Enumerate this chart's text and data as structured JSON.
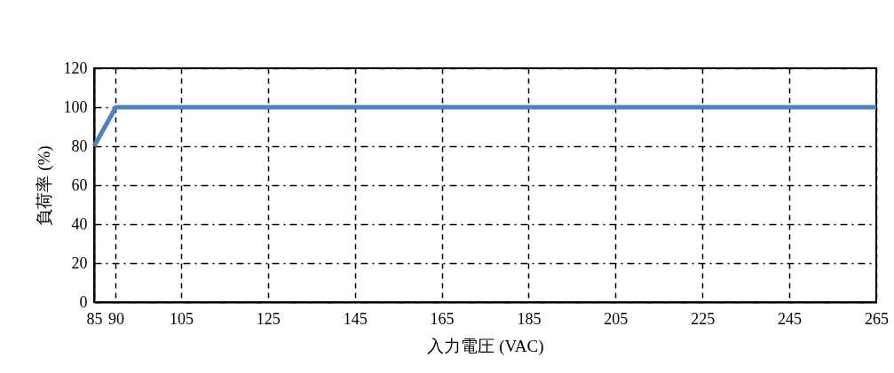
{
  "chart_data": {
    "type": "line",
    "xlabel": "入力電圧 (VAC)",
    "ylabel": "負荷率 (%)",
    "x": [
      85,
      90,
      265
    ],
    "series": [
      {
        "color": "#4f81bd",
        "values": [
          80,
          100,
          100
        ]
      }
    ],
    "xlim": [
      85,
      265
    ],
    "xticks": [
      85,
      90,
      105,
      125,
      145,
      165,
      185,
      205,
      225,
      245,
      265
    ],
    "ylim": [
      0,
      120
    ],
    "yticks": [
      0,
      20,
      40,
      60,
      80,
      100,
      120
    ],
    "grid": true,
    "marker": "none",
    "line_style": "solid",
    "legend": false
  }
}
